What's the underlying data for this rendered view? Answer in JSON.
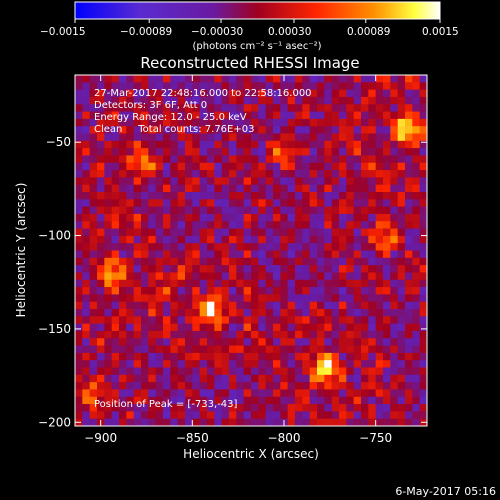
{
  "colorbar": {
    "tick_labels": [
      "−0.0015",
      "−0.00089",
      "−0.00030",
      "0.00030",
      "0.00089",
      "0.0015"
    ],
    "tick_values": [
      -0.0015,
      -0.00089,
      -0.0003,
      0.0003,
      0.00089,
      0.0015
    ],
    "units_label": "(photons cm⁻² s⁻¹ asec⁻²)",
    "colors": [
      "#0000ff",
      "#5a2bd0",
      "#7a1aa0",
      "#b00020",
      "#ff3000",
      "#ff9000",
      "#ffff40",
      "#ffffff"
    ]
  },
  "plot": {
    "title": "Reconstructed RHESSI Image",
    "info_lines": [
      "27-Mar-2017 22:48:16.000 to 22:58:16.000",
      "Detectors: 3F 6F, Att 0",
      "Energy Range: 12.0 - 25.0 keV",
      "Clean     Total counts: 7.76E+03"
    ],
    "peak_label": "Position of Peak = [-733,-43]",
    "footer_timestamp": "6-May-2017 05:16"
  },
  "chart_data": {
    "type": "heatmap",
    "title": "Reconstructed RHESSI Image",
    "xlabel": "Heliocentric X (arcsec)",
    "ylabel": "Heliocentric Y (arcsec)",
    "x_ticks": [
      -900,
      -850,
      -800,
      -750
    ],
    "x_tick_labels": [
      "−900",
      "−850",
      "−800",
      "−750"
    ],
    "y_ticks": [
      -50,
      -100,
      -150,
      -200
    ],
    "y_tick_labels": [
      "−50",
      "−100",
      "−150",
      "−200"
    ],
    "xlim": [
      -914,
      -722
    ],
    "ylim": [
      -202,
      -14
    ],
    "zlim": [
      -0.0015,
      0.0015
    ],
    "peak": [
      -733,
      -43
    ],
    "hotspots": [
      {
        "x": -878,
        "y": -60,
        "intensity": 0.001
      },
      {
        "x": -894,
        "y": -120,
        "intensity": 0.0012
      },
      {
        "x": -840,
        "y": -140,
        "intensity": 0.0014
      },
      {
        "x": -778,
        "y": -172,
        "intensity": 0.0015
      },
      {
        "x": -733,
        "y": -43,
        "intensity": 0.0015
      },
      {
        "x": -745,
        "y": -100,
        "intensity": 0.0009
      },
      {
        "x": -800,
        "y": -55,
        "intensity": 0.0007
      },
      {
        "x": -905,
        "y": -185,
        "intensity": 0.0009
      }
    ]
  }
}
